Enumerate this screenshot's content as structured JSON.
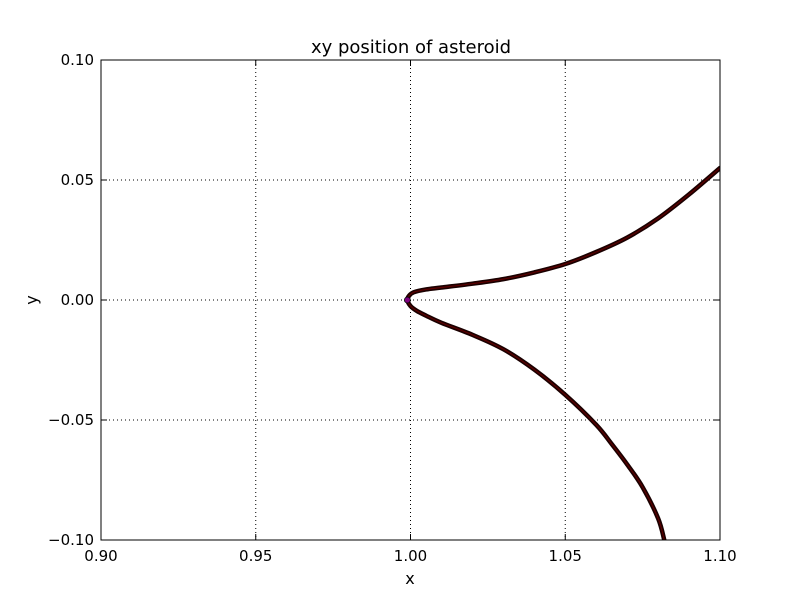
{
  "chart_data": {
    "type": "line",
    "title": "xy position of asteroid",
    "xlabel": "x",
    "ylabel": "y",
    "xlim": [
      0.9,
      1.1
    ],
    "ylim": [
      -0.1,
      0.1
    ],
    "xticks": [
      0.9,
      0.95,
      1.0,
      1.05,
      1.1
    ],
    "yticks": [
      -0.1,
      -0.05,
      0.0,
      0.05,
      0.1
    ],
    "xtick_labels": [
      "0.90",
      "0.95",
      "1.00",
      "1.05",
      "1.10"
    ],
    "ytick_labels": [
      "−0.10",
      "−0.05",
      "0.00",
      "0.05",
      "0.10"
    ],
    "grid": true,
    "series": [
      {
        "color": "#1a0000",
        "highlight_color": "#8b0000",
        "x": [
          1.1,
          1.09,
          1.08,
          1.07,
          1.06,
          1.05,
          1.04,
          1.03,
          1.02,
          1.01,
          1.005,
          1.001,
          0.9995,
          0.999,
          1.0,
          1.002,
          1.005,
          1.01,
          1.02,
          1.03,
          1.04,
          1.05,
          1.06,
          1.065,
          1.07,
          1.075,
          1.08,
          1.082
        ],
        "y": [
          0.055,
          0.044,
          0.034,
          0.026,
          0.02,
          0.015,
          0.0115,
          0.0087,
          0.0068,
          0.0052,
          0.0044,
          0.0032,
          0.0017,
          0.0,
          -0.0025,
          -0.0045,
          -0.0065,
          -0.0095,
          -0.0145,
          -0.0205,
          -0.029,
          -0.0395,
          -0.052,
          -0.06,
          -0.0685,
          -0.078,
          -0.091,
          -0.1
        ]
      }
    ],
    "marker": {
      "x": 0.999,
      "y": 0.0,
      "color": "#800080"
    }
  }
}
